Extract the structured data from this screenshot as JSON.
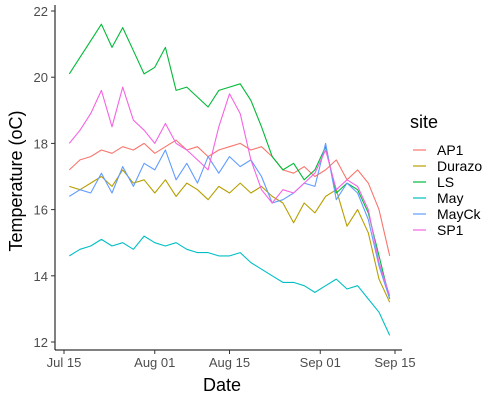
{
  "chart_data": {
    "type": "line",
    "xlabel": "Date",
    "ylabel": "Temperature (oC)",
    "x_tick_labels": [
      "Jul 15",
      "Aug 01",
      "Aug 15",
      "Sep 01",
      "Sep 15"
    ],
    "x_ticks": [
      "2023-07-15",
      "2023-08-01",
      "2023-08-15",
      "2023-09-01",
      "2023-09-15"
    ],
    "xlim": [
      "2023-07-15",
      "2023-09-15"
    ],
    "y_tick_labels": [
      "12",
      "14",
      "16",
      "18",
      "20",
      "22"
    ],
    "y_ticks": [
      12,
      14,
      16,
      18,
      20,
      22
    ],
    "ylim": [
      12,
      22
    ],
    "grid": false,
    "legend": {
      "title": "site",
      "position": "right"
    },
    "series": [
      {
        "name": "AP1",
        "color": "#F8766D",
        "x": [
          "2023-07-16",
          "2023-07-18",
          "2023-07-20",
          "2023-07-22",
          "2023-07-24",
          "2023-07-26",
          "2023-07-28",
          "2023-07-30",
          "2023-08-01",
          "2023-08-03",
          "2023-08-05",
          "2023-08-07",
          "2023-08-09",
          "2023-08-11",
          "2023-08-13",
          "2023-08-15",
          "2023-08-17",
          "2023-08-19",
          "2023-08-21",
          "2023-08-23",
          "2023-08-25",
          "2023-08-27",
          "2023-08-29",
          "2023-08-31",
          "2023-09-02",
          "2023-09-04",
          "2023-09-06",
          "2023-09-08",
          "2023-09-10",
          "2023-09-12",
          "2023-09-14"
        ],
        "y": [
          17.2,
          17.5,
          17.6,
          17.8,
          17.7,
          17.9,
          17.8,
          18.0,
          17.7,
          17.9,
          18.1,
          17.8,
          17.9,
          17.6,
          17.8,
          17.9,
          18.0,
          17.8,
          17.9,
          17.6,
          17.2,
          17.1,
          17.3,
          17.0,
          17.2,
          17.5,
          16.9,
          17.2,
          16.8,
          16.0,
          14.6
        ]
      },
      {
        "name": "Durazo",
        "color": "#B79F00",
        "x": [
          "2023-07-16",
          "2023-07-18",
          "2023-07-20",
          "2023-07-22",
          "2023-07-24",
          "2023-07-26",
          "2023-07-28",
          "2023-07-30",
          "2023-08-01",
          "2023-08-03",
          "2023-08-05",
          "2023-08-07",
          "2023-08-09",
          "2023-08-11",
          "2023-08-13",
          "2023-08-15",
          "2023-08-17",
          "2023-08-19",
          "2023-08-21",
          "2023-08-23",
          "2023-08-25",
          "2023-08-27",
          "2023-08-29",
          "2023-08-31",
          "2023-09-02",
          "2023-09-04",
          "2023-09-06",
          "2023-09-08",
          "2023-09-10",
          "2023-09-12",
          "2023-09-14"
        ],
        "y": [
          16.7,
          16.6,
          16.8,
          17.0,
          16.7,
          17.2,
          16.8,
          16.9,
          16.5,
          16.9,
          16.4,
          16.8,
          16.6,
          16.3,
          16.7,
          16.5,
          16.8,
          16.5,
          16.7,
          16.4,
          16.2,
          15.6,
          16.2,
          15.9,
          16.4,
          16.6,
          15.5,
          16.0,
          15.3,
          13.9,
          13.2
        ]
      },
      {
        "name": "LS",
        "color": "#00BA38",
        "x": [
          "2023-07-16",
          "2023-07-18",
          "2023-07-20",
          "2023-07-22",
          "2023-07-24",
          "2023-07-26",
          "2023-07-28",
          "2023-07-30",
          "2023-08-01",
          "2023-08-03",
          "2023-08-05",
          "2023-08-07",
          "2023-08-09",
          "2023-08-11",
          "2023-08-13",
          "2023-08-15",
          "2023-08-17",
          "2023-08-19",
          "2023-08-21",
          "2023-08-23",
          "2023-08-25",
          "2023-08-27",
          "2023-08-29",
          "2023-08-31",
          "2023-09-02",
          "2023-09-04",
          "2023-09-06",
          "2023-09-08",
          "2023-09-10",
          "2023-09-12",
          "2023-09-14"
        ],
        "y": [
          20.1,
          20.6,
          21.1,
          21.6,
          20.9,
          21.5,
          20.8,
          20.1,
          20.3,
          20.9,
          19.6,
          19.7,
          19.4,
          19.1,
          19.6,
          19.7,
          19.8,
          19.3,
          18.5,
          17.6,
          17.2,
          17.4,
          16.9,
          17.2,
          17.9,
          16.5,
          16.8,
          16.6,
          15.9,
          14.6,
          13.3
        ]
      },
      {
        "name": "May",
        "color": "#00BFC4",
        "x": [
          "2023-07-16",
          "2023-07-18",
          "2023-07-20",
          "2023-07-22",
          "2023-07-24",
          "2023-07-26",
          "2023-07-28",
          "2023-07-30",
          "2023-08-01",
          "2023-08-03",
          "2023-08-05",
          "2023-08-07",
          "2023-08-09",
          "2023-08-11",
          "2023-08-13",
          "2023-08-15",
          "2023-08-17",
          "2023-08-19",
          "2023-08-21",
          "2023-08-23",
          "2023-08-25",
          "2023-08-27",
          "2023-08-29",
          "2023-08-31",
          "2023-09-02",
          "2023-09-04",
          "2023-09-06",
          "2023-09-08",
          "2023-09-10",
          "2023-09-12",
          "2023-09-14"
        ],
        "y": [
          14.6,
          14.8,
          14.9,
          15.1,
          14.9,
          15.0,
          14.8,
          15.2,
          15.0,
          14.9,
          15.0,
          14.8,
          14.7,
          14.7,
          14.6,
          14.6,
          14.7,
          14.4,
          14.2,
          14.0,
          13.8,
          13.8,
          13.7,
          13.5,
          13.7,
          13.9,
          13.6,
          13.7,
          13.3,
          12.9,
          12.2
        ]
      },
      {
        "name": "MayCk",
        "color": "#619CFF",
        "x": [
          "2023-07-16",
          "2023-07-18",
          "2023-07-20",
          "2023-07-22",
          "2023-07-24",
          "2023-07-26",
          "2023-07-28",
          "2023-07-30",
          "2023-08-01",
          "2023-08-03",
          "2023-08-05",
          "2023-08-07",
          "2023-08-09",
          "2023-08-11",
          "2023-08-13",
          "2023-08-15",
          "2023-08-17",
          "2023-08-19",
          "2023-08-21",
          "2023-08-23",
          "2023-08-25",
          "2023-08-27",
          "2023-08-29",
          "2023-08-31",
          "2023-09-02",
          "2023-09-04",
          "2023-09-06",
          "2023-09-08",
          "2023-09-10",
          "2023-09-12",
          "2023-09-14"
        ],
        "y": [
          16.4,
          16.6,
          16.5,
          17.1,
          16.5,
          17.3,
          16.7,
          17.4,
          17.2,
          17.8,
          16.9,
          17.4,
          16.8,
          17.6,
          17.1,
          17.6,
          17.3,
          17.5,
          17.0,
          16.2,
          16.3,
          16.5,
          16.8,
          16.7,
          18.0,
          16.3,
          16.8,
          16.5,
          15.7,
          14.3,
          13.3
        ]
      },
      {
        "name": "SP1",
        "color": "#F564E3",
        "x": [
          "2023-07-16",
          "2023-07-18",
          "2023-07-20",
          "2023-07-22",
          "2023-07-24",
          "2023-07-26",
          "2023-07-28",
          "2023-07-30",
          "2023-08-01",
          "2023-08-03",
          "2023-08-05",
          "2023-08-07",
          "2023-08-09",
          "2023-08-11",
          "2023-08-13",
          "2023-08-15",
          "2023-08-17",
          "2023-08-19",
          "2023-08-21",
          "2023-08-23",
          "2023-08-25",
          "2023-08-27",
          "2023-08-29",
          "2023-08-31",
          "2023-09-02",
          "2023-09-04",
          "2023-09-06",
          "2023-09-08",
          "2023-09-10",
          "2023-09-12",
          "2023-09-14"
        ],
        "y": [
          18.0,
          18.4,
          18.9,
          19.6,
          18.5,
          19.7,
          18.7,
          18.4,
          18.0,
          18.6,
          18.0,
          17.8,
          17.5,
          17.2,
          18.5,
          19.5,
          18.9,
          17.5,
          16.6,
          16.2,
          16.6,
          16.5,
          16.8,
          17.1,
          17.8,
          16.6,
          16.9,
          16.7,
          16.0,
          14.4,
          13.4
        ]
      }
    ]
  }
}
